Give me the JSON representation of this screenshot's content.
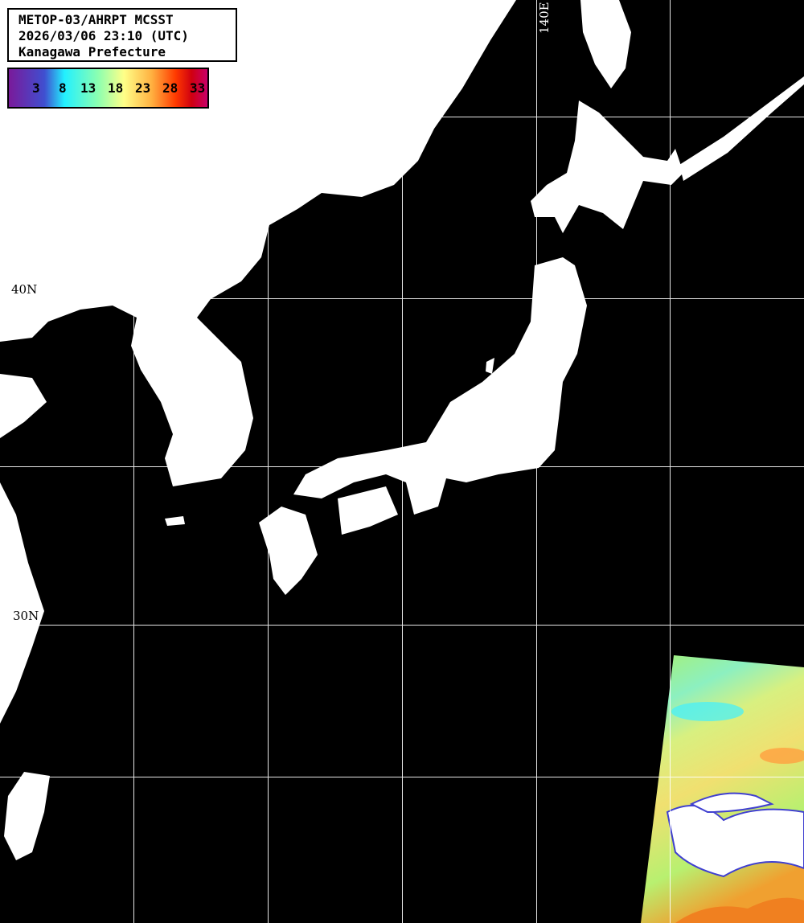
{
  "header": {
    "line1": "METOP-03/AHRPT MCSST",
    "line2": "2026/03/06 23:10 (UTC)",
    "line3": "Kanagawa Prefecture"
  },
  "colorbar": {
    "ticks": [
      "3",
      "8",
      "13",
      "18",
      "23",
      "28",
      "33"
    ],
    "colors": [
      "#7a1a9a",
      "#3f4fd0",
      "#22f0ff",
      "#8cffb0",
      "#ffff88",
      "#ffb040",
      "#ff3a00",
      "#d00010",
      "#c8006a"
    ]
  },
  "grid": {
    "lat_labels": [
      "40N",
      "30N"
    ],
    "lon_labels": [
      "140E"
    ]
  },
  "colors": {
    "land": "#ffffff",
    "sea_no_data": "#000000",
    "grid": "#ffffff"
  }
}
